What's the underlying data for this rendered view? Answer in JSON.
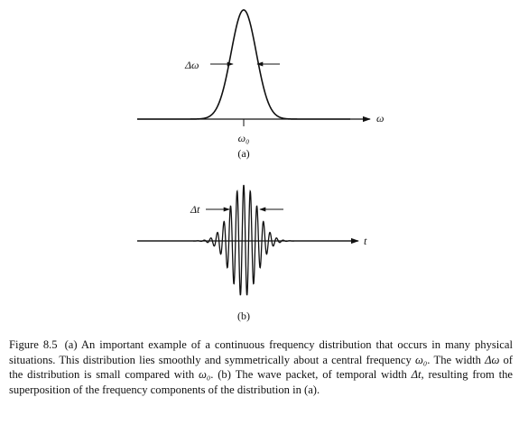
{
  "figure": {
    "panel_a": {
      "width_label": "Δω",
      "axis_label": "ω",
      "center_label": "ω₀",
      "panel_label": "(a)"
    },
    "panel_b": {
      "width_label": "Δt",
      "axis_label": "t",
      "panel_label": "(b)"
    }
  },
  "caption": {
    "number": "Figure 8.5",
    "segments": [
      {
        "text": "(a) An important example of a continuous frequency distribution that occurs in many physical situations. This distribution lies smoothly and symmetrically about a central frequency ",
        "italic": false
      },
      {
        "text": "ω₀",
        "italic": true
      },
      {
        "text": ". The width ",
        "italic": false
      },
      {
        "text": "Δω",
        "italic": true
      },
      {
        "text": " of the distribution is small compared with ",
        "italic": false
      },
      {
        "text": "ω₀",
        "italic": true
      },
      {
        "text": ". (b) The wave packet, of temporal width ",
        "italic": false
      },
      {
        "text": "Δt",
        "italic": true
      },
      {
        "text": ", resulting from the superposition of the frequency components of the distribution in (a).",
        "italic": false
      }
    ]
  }
}
